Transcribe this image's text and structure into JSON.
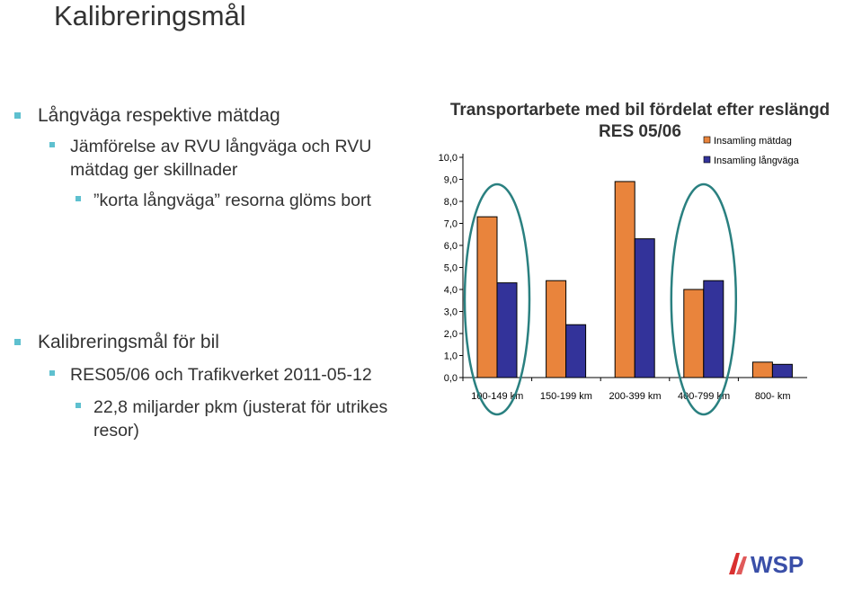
{
  "slide": {
    "title": "Kalibreringsmål",
    "block1": {
      "l1": "Långväga respektive mätdag",
      "l2": "Jämförelse av RVU långväga och RVU mätdag ger skillnader",
      "l2a": "Jämförelse av RVU långväga och RVU",
      "l2b": "mätdag ger skillnader",
      "l3": "”korta långväga” resorna glöms bort"
    },
    "block2": {
      "l1": "Kalibreringsmål för bil",
      "l2": "RES05/06 och Trafikverket 2011-05-12",
      "l3a": "22,8 miljarder pkm (justerat för utrikes",
      "l3b": "resor)"
    },
    "logo_text": "WSP"
  },
  "colors": {
    "accent": "#5ec0cf",
    "series1": "#e9843c",
    "series2": "#33339a",
    "ellipse": "#2a8080"
  },
  "chart_data": {
    "type": "bar",
    "title_line1": "Transportarbete med bil fördelat efter reslängd",
    "title_line2": "RES 05/06",
    "categories": [
      "100-149 km",
      "150-199 km",
      "200-399 km",
      "400-799 km",
      "800- km"
    ],
    "series": [
      {
        "name": "Insamling mätdag",
        "values": [
          7.3,
          4.4,
          8.9,
          4.0,
          0.7
        ]
      },
      {
        "name": "Insamling långväga",
        "values": [
          4.3,
          2.4,
          6.3,
          4.4,
          0.6
        ]
      }
    ],
    "ylim": [
      0,
      10
    ],
    "yticks": [
      "0,0",
      "1,0",
      "2,0",
      "3,0",
      "4,0",
      "5,0",
      "6,0",
      "7,0",
      "8,0",
      "9,0",
      "10,0"
    ],
    "legend_position": "top-right",
    "highlighted_categories": [
      0,
      3
    ]
  }
}
